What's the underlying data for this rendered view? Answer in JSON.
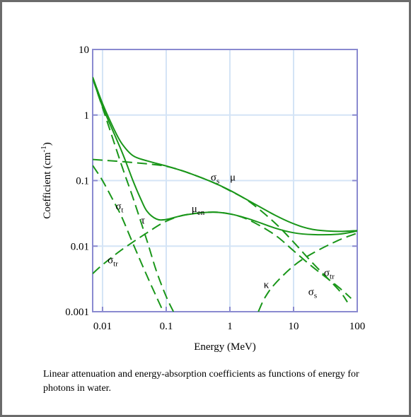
{
  "caption": "Linear attenuation and energy-absorption coefficients as functions of energy for photons in water.",
  "chart_data": {
    "type": "line",
    "title": "",
    "xlabel": "Energy (MeV)",
    "ylabel_base": "Coefficient (cm",
    "ylabel_sup": "-1",
    "ylabel_end": ")",
    "x_scale": "log",
    "y_scale": "log",
    "xlim": [
      0.007,
      100
    ],
    "ylim": [
      0.001,
      10
    ],
    "x_ticks": [
      {
        "value": 0.01,
        "label": "0.01"
      },
      {
        "value": 0.1,
        "label": "0.1"
      },
      {
        "value": 1,
        "label": "1"
      },
      {
        "value": 10,
        "label": "10"
      },
      {
        "value": 100,
        "label": "100"
      }
    ],
    "y_ticks": [
      {
        "value": 0.001,
        "label": "0.001"
      },
      {
        "value": 0.01,
        "label": "0.01"
      },
      {
        "value": 0.1,
        "label": "0.1"
      },
      {
        "value": 1,
        "label": "1"
      },
      {
        "value": 10,
        "label": "10"
      }
    ],
    "grid": true,
    "colors": {
      "curves": "#199619",
      "axes": "#8a8ad0",
      "grid": "#d4e4f6",
      "frame": "#6b6b6b"
    },
    "series": [
      {
        "name": "μ",
        "style": "solid",
        "points": [
          [
            0.007,
            3.8
          ],
          [
            0.01,
            1.5
          ],
          [
            0.015,
            0.62
          ],
          [
            0.02,
            0.37
          ],
          [
            0.03,
            0.24
          ],
          [
            0.05,
            0.2
          ],
          [
            0.1,
            0.167
          ],
          [
            0.2,
            0.136
          ],
          [
            0.5,
            0.097
          ],
          [
            1,
            0.071
          ],
          [
            2,
            0.049
          ],
          [
            5,
            0.03
          ],
          [
            10,
            0.022
          ],
          [
            20,
            0.018
          ],
          [
            50,
            0.0168
          ],
          [
            100,
            0.0173
          ]
        ]
      },
      {
        "name": "μ_en",
        "style": "solid",
        "points": [
          [
            0.007,
            3.7
          ],
          [
            0.01,
            1.35
          ],
          [
            0.02,
            0.28
          ],
          [
            0.03,
            0.1
          ],
          [
            0.04,
            0.052
          ],
          [
            0.05,
            0.034
          ],
          [
            0.07,
            0.026
          ],
          [
            0.1,
            0.0255
          ],
          [
            0.2,
            0.03
          ],
          [
            0.5,
            0.033
          ],
          [
            1,
            0.031
          ],
          [
            2,
            0.026
          ],
          [
            5,
            0.019
          ],
          [
            10,
            0.016
          ],
          [
            20,
            0.015
          ],
          [
            50,
            0.0152
          ],
          [
            100,
            0.017
          ]
        ]
      },
      {
        "name": "σ_s",
        "style": "dashed",
        "points": [
          [
            0.007,
            0.21
          ],
          [
            0.01,
            0.205
          ],
          [
            0.02,
            0.195
          ],
          [
            0.05,
            0.18
          ],
          [
            0.1,
            0.165
          ],
          [
            0.2,
            0.136
          ],
          [
            0.5,
            0.097
          ],
          [
            1,
            0.07
          ],
          [
            2,
            0.048
          ],
          [
            5,
            0.023
          ],
          [
            10,
            0.0115
          ],
          [
            20,
            0.0055
          ],
          [
            50,
            0.0022
          ],
          [
            70,
            0.0014
          ]
        ]
      },
      {
        "name": "σ_t",
        "style": "dashed",
        "points": [
          [
            0.007,
            0.17
          ],
          [
            0.01,
            0.1
          ],
          [
            0.015,
            0.048
          ],
          [
            0.02,
            0.028
          ],
          [
            0.03,
            0.011
          ],
          [
            0.05,
            0.0035
          ],
          [
            0.07,
            0.0017
          ],
          [
            0.09,
            0.001
          ]
        ]
      },
      {
        "name": "σ_tr",
        "style": "dashed",
        "points": [
          [
            0.007,
            0.0038
          ],
          [
            0.01,
            0.0052
          ],
          [
            0.02,
            0.0088
          ],
          [
            0.05,
            0.016
          ],
          [
            0.1,
            0.024
          ],
          [
            0.2,
            0.03
          ],
          [
            0.5,
            0.033
          ],
          [
            1,
            0.031
          ],
          [
            2,
            0.025
          ],
          [
            5,
            0.015
          ],
          [
            10,
            0.0085
          ],
          [
            20,
            0.0048
          ],
          [
            50,
            0.0024
          ],
          [
            80,
            0.0016
          ]
        ]
      },
      {
        "name": "τ",
        "style": "dashed",
        "points": [
          [
            0.007,
            3.6
          ],
          [
            0.01,
            1.3
          ],
          [
            0.02,
            0.17
          ],
          [
            0.03,
            0.055
          ],
          [
            0.05,
            0.012
          ],
          [
            0.07,
            0.0042
          ],
          [
            0.1,
            0.0017
          ],
          [
            0.13,
            0.001
          ]
        ]
      },
      {
        "name": "κ",
        "style": "dashed",
        "points": [
          [
            2.8,
            0.001
          ],
          [
            3.5,
            0.0016
          ],
          [
            5,
            0.0026
          ],
          [
            10,
            0.005
          ],
          [
            20,
            0.0078
          ],
          [
            50,
            0.0122
          ],
          [
            100,
            0.0158
          ]
        ]
      }
    ],
    "labels": [
      {
        "text": "σ",
        "sub": "s",
        "x": 0.5,
        "y": 0.1
      },
      {
        "text": "μ",
        "sub": "",
        "x": 1.0,
        "y": 0.1
      },
      {
        "text": "σ",
        "sub": "t",
        "x": 0.016,
        "y": 0.036
      },
      {
        "text": "τ",
        "sub": "",
        "x": 0.04,
        "y": 0.022
      },
      {
        "text": "μ",
        "sub": "en",
        "x": 0.25,
        "y": 0.033
      },
      {
        "text": "σ",
        "sub": "tr",
        "x": 0.012,
        "y": 0.0055
      },
      {
        "text": "κ",
        "sub": "",
        "x": 3.4,
        "y": 0.0023
      },
      {
        "text": "σ",
        "sub": "tr",
        "x": 30,
        "y": 0.0035
      },
      {
        "text": "σ",
        "sub": "s",
        "x": 17,
        "y": 0.0018
      }
    ]
  }
}
